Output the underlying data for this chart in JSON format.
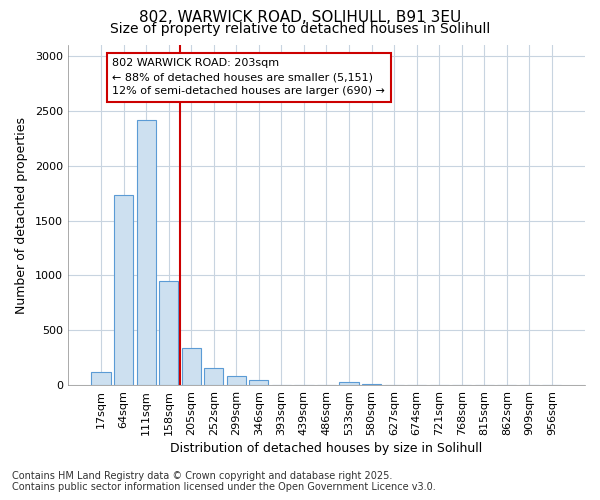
{
  "title1": "802, WARWICK ROAD, SOLIHULL, B91 3EU",
  "title2": "Size of property relative to detached houses in Solihull",
  "xlabel": "Distribution of detached houses by size in Solihull",
  "ylabel": "Number of detached properties",
  "categories": [
    "17sqm",
    "64sqm",
    "111sqm",
    "158sqm",
    "205sqm",
    "252sqm",
    "299sqm",
    "346sqm",
    "393sqm",
    "439sqm",
    "486sqm",
    "533sqm",
    "580sqm",
    "627sqm",
    "674sqm",
    "721sqm",
    "768sqm",
    "815sqm",
    "862sqm",
    "909sqm",
    "956sqm"
  ],
  "values": [
    120,
    1730,
    2420,
    950,
    340,
    155,
    80,
    45,
    0,
    0,
    0,
    30,
    10,
    0,
    0,
    0,
    0,
    0,
    0,
    0,
    0
  ],
  "bar_color": "#cde0f0",
  "bar_edge_color": "#5b9bd5",
  "red_line_x": 4,
  "red_line_color": "#cc0000",
  "annotation_text": "802 WARWICK ROAD: 203sqm\n← 88% of detached houses are smaller (5,151)\n12% of semi-detached houses are larger (690) →",
  "annotation_box_facecolor": "#ffffff",
  "annotation_box_edgecolor": "#cc0000",
  "ylim": [
    0,
    3100
  ],
  "yticks": [
    0,
    500,
    1000,
    1500,
    2000,
    2500,
    3000
  ],
  "grid_color": "#c8d4e0",
  "background_color": "#ffffff",
  "footer_line1": "Contains HM Land Registry data © Crown copyright and database right 2025.",
  "footer_line2": "Contains public sector information licensed under the Open Government Licence v3.0.",
  "title1_fontsize": 11,
  "title2_fontsize": 10,
  "axis_label_fontsize": 9,
  "tick_fontsize": 8,
  "annotation_fontsize": 8,
  "footer_fontsize": 7
}
